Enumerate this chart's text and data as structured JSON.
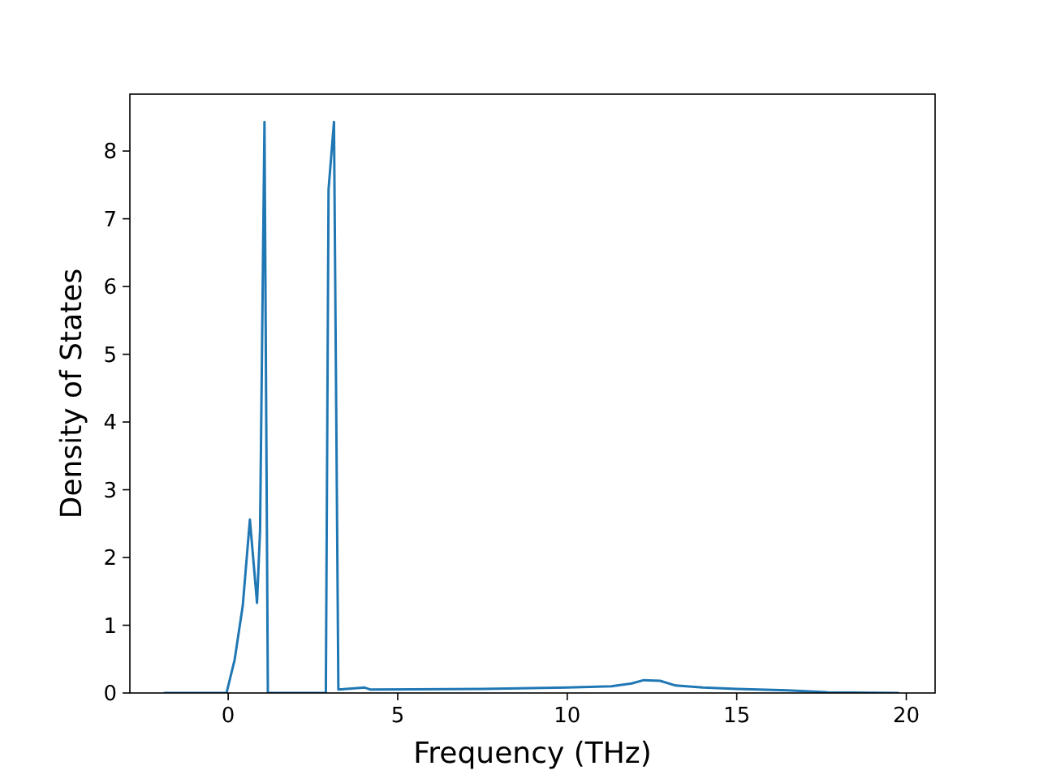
{
  "chart_data": {
    "type": "line",
    "xlabel": "Frequency (THz)",
    "ylabel": "Density of States",
    "xlim": [
      -2.9,
      20.85
    ],
    "ylim": [
      0,
      8.84
    ],
    "xticks": [
      0,
      5,
      10,
      15,
      20
    ],
    "yticks": [
      0,
      1,
      2,
      3,
      4,
      5,
      6,
      7,
      8
    ],
    "grid": false,
    "series": [
      {
        "color": "#1f77b4",
        "x": [
          -1.88,
          -0.05,
          0.19,
          0.43,
          0.64,
          0.85,
          0.94,
          1.07,
          1.17,
          2.88,
          2.96,
          3.12,
          3.25,
          4.03,
          4.2,
          7.5,
          10.0,
          11.3,
          11.9,
          12.26,
          12.74,
          13.2,
          14,
          15,
          16.5,
          17.7,
          19.76
        ],
        "values": [
          0,
          0,
          0.49,
          1.29,
          2.56,
          1.33,
          2.4,
          8.43,
          0,
          0,
          7.43,
          8.43,
          0.05,
          0.08,
          0.05,
          0.06,
          0.08,
          0.1,
          0.14,
          0.19,
          0.18,
          0.11,
          0.08,
          0.06,
          0.04,
          0.01,
          0
        ]
      }
    ]
  }
}
